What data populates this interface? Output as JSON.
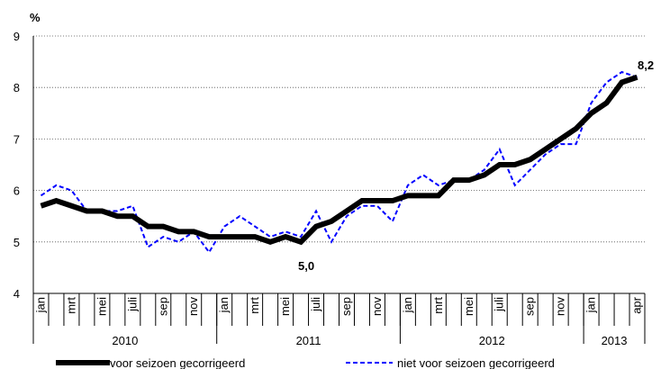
{
  "chart_data": {
    "type": "line",
    "y_unit_label": "%",
    "categories": [
      "jan",
      null,
      "mrt",
      null,
      "mei",
      null,
      "juli",
      null,
      "sep",
      null,
      "nov",
      null,
      "jan",
      null,
      "mrt",
      null,
      "mei",
      null,
      "juli",
      null,
      "sep",
      null,
      "nov",
      null,
      "jan",
      null,
      "mrt",
      null,
      "mei",
      null,
      "juli",
      null,
      "sep",
      null,
      "nov",
      null,
      "jan",
      null,
      null,
      "apr"
    ],
    "years": [
      "2010",
      "2011",
      "2012",
      "2013"
    ],
    "series": [
      {
        "name": "voor seizoen gecorrigeerd",
        "color": "#000000",
        "style": "solid",
        "values": [
          5.7,
          5.8,
          5.7,
          5.6,
          5.6,
          5.5,
          5.5,
          5.3,
          5.3,
          5.2,
          5.2,
          5.1,
          5.1,
          5.1,
          5.1,
          5.0,
          5.1,
          5.0,
          5.3,
          5.4,
          5.6,
          5.8,
          5.8,
          5.8,
          5.9,
          5.9,
          5.9,
          6.2,
          6.2,
          6.3,
          6.5,
          6.5,
          6.6,
          6.8,
          7.0,
          7.2,
          7.5,
          7.7,
          8.1,
          8.2
        ]
      },
      {
        "name": "niet voor seizoen gecorrigeerd",
        "color": "#0000ff",
        "style": "dashed",
        "values": [
          5.9,
          6.1,
          6.0,
          5.6,
          5.6,
          5.6,
          5.7,
          4.9,
          5.1,
          5.0,
          5.2,
          4.8,
          5.3,
          5.5,
          5.3,
          5.1,
          5.2,
          5.1,
          5.6,
          5.0,
          5.5,
          5.7,
          5.7,
          5.4,
          6.1,
          6.3,
          6.1,
          6.2,
          6.2,
          6.4,
          6.8,
          6.1,
          6.4,
          6.7,
          6.9,
          6.9,
          7.7,
          8.1,
          8.3,
          8.2
        ]
      }
    ],
    "annotations": [
      "5,0",
      "8,2"
    ],
    "ylim": [
      4,
      9
    ],
    "yticks": [
      4,
      5,
      6,
      7,
      8,
      9
    ],
    "grid": true
  }
}
